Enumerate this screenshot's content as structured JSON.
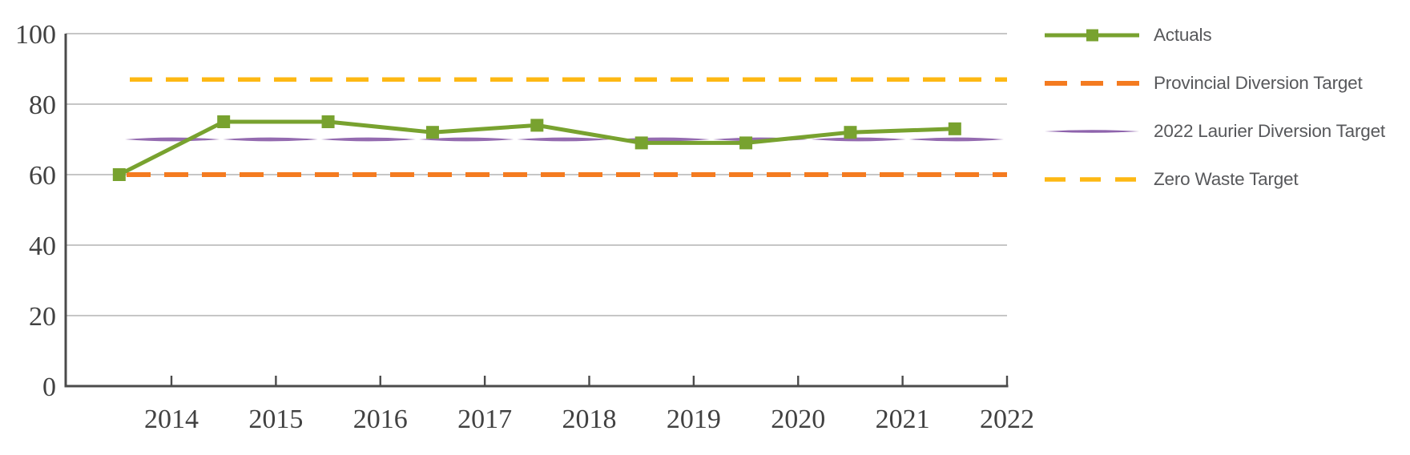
{
  "chart_data": {
    "type": "line",
    "title": "",
    "xlabel": "",
    "ylabel": "",
    "x_tick_labels": [
      "2014",
      "2015",
      "2016",
      "2017",
      "2018",
      "2019",
      "2020",
      "2021",
      "2022"
    ],
    "y_tick_labels": [
      "0",
      "20",
      "40",
      "60",
      "80",
      "100"
    ],
    "ylim": [
      0,
      100
    ],
    "grid": "horizontal",
    "legend_position": "right",
    "x_points": [
      2013.5,
      2014.5,
      2015.5,
      2016.5,
      2017.5,
      2018.5,
      2019.5,
      2020.5,
      2021.5
    ],
    "series": [
      {
        "name": "Actuals",
        "style": "solid-line-square-markers",
        "color": "#78A22F",
        "values": [
          60,
          75,
          75,
          72,
          74,
          69,
          69,
          72,
          73
        ]
      },
      {
        "name": "Provincial Diversion Target",
        "style": "dashed-horizontal-line",
        "color": "#F47B20",
        "value": 60
      },
      {
        "name": "2022 Laurier Diversion Target",
        "style": "tapered-solid-line",
        "color": "#8E63AC",
        "value": 70
      },
      {
        "name": "Zero Waste Target",
        "style": "dashed-horizontal-line",
        "color": "#FDB813",
        "value": 87
      }
    ]
  },
  "colors": {
    "actuals_green": "#78A22F",
    "provincial_orange": "#F47B20",
    "laurier_purple": "#8E63AC",
    "zero_waste_yellow": "#FDB813",
    "gridline_gray": "#B3B3B3",
    "axis_gray": "#4B4B4B",
    "tick_label_gray": "#414141",
    "legend_text_gray": "#57585B"
  }
}
